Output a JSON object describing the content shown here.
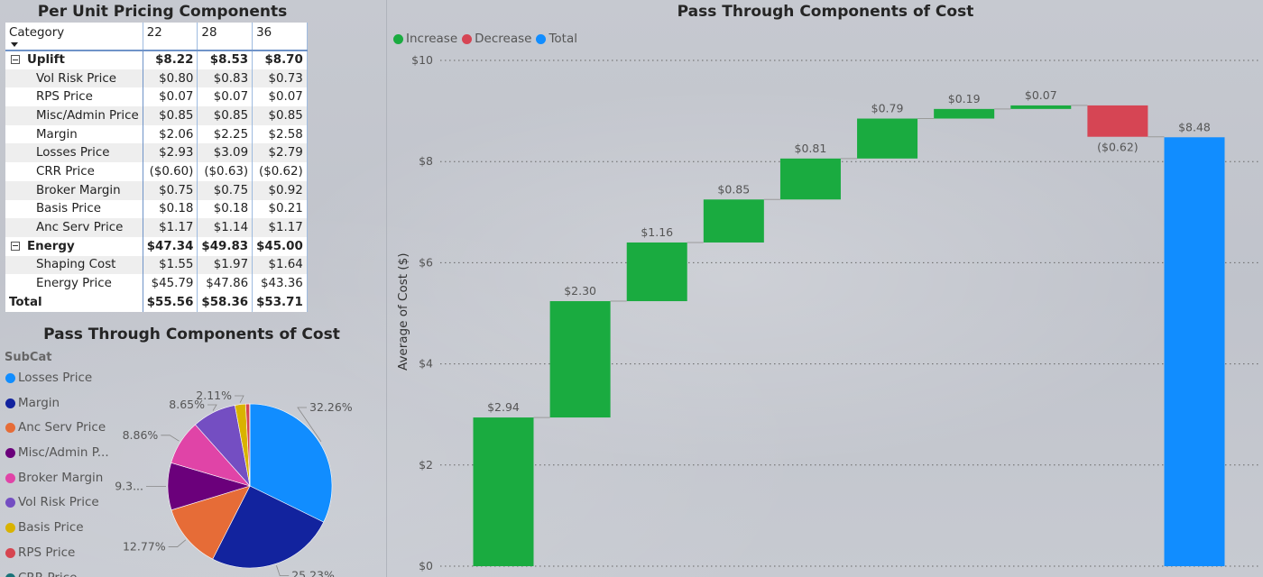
{
  "matrix": {
    "title": "Per Unit Pricing Components",
    "columns": [
      "Category",
      "22",
      "28",
      "36"
    ],
    "rows": [
      {
        "label": "Uplift",
        "type": "group",
        "values": [
          "$8.22",
          "$8.53",
          "$8.70"
        ]
      },
      {
        "label": "Vol Risk Price",
        "type": "child",
        "values": [
          "$0.80",
          "$0.83",
          "$0.73"
        ]
      },
      {
        "label": "RPS Price",
        "type": "child",
        "values": [
          "$0.07",
          "$0.07",
          "$0.07"
        ]
      },
      {
        "label": "Misc/Admin Price",
        "type": "child",
        "values": [
          "$0.85",
          "$0.85",
          "$0.85"
        ]
      },
      {
        "label": "Margin",
        "type": "child",
        "values": [
          "$2.06",
          "$2.25",
          "$2.58"
        ]
      },
      {
        "label": "Losses Price",
        "type": "child",
        "values": [
          "$2.93",
          "$3.09",
          "$2.79"
        ]
      },
      {
        "label": "CRR Price",
        "type": "child",
        "values": [
          "($0.60)",
          "($0.63)",
          "($0.62)"
        ]
      },
      {
        "label": "Broker Margin",
        "type": "child",
        "values": [
          "$0.75",
          "$0.75",
          "$0.92"
        ]
      },
      {
        "label": "Basis Price",
        "type": "child",
        "values": [
          "$0.18",
          "$0.18",
          "$0.21"
        ]
      },
      {
        "label": "Anc Serv Price",
        "type": "child",
        "values": [
          "$1.17",
          "$1.14",
          "$1.17"
        ]
      },
      {
        "label": "Energy",
        "type": "group",
        "values": [
          "$47.34",
          "$49.83",
          "$45.00"
        ]
      },
      {
        "label": "Shaping Cost",
        "type": "child",
        "values": [
          "$1.55",
          "$1.97",
          "$1.64"
        ]
      },
      {
        "label": "Energy Price",
        "type": "child",
        "values": [
          "$45.79",
          "$47.86",
          "$43.36"
        ]
      },
      {
        "label": "Total",
        "type": "total",
        "values": [
          "$55.56",
          "$58.36",
          "$53.71"
        ]
      }
    ]
  },
  "pie": {
    "title": "Pass Through Components of Cost",
    "legend_title": "SubCat",
    "legend": [
      {
        "name": "Losses Price",
        "color": "#118dff"
      },
      {
        "name": "Margin",
        "color": "#12239e"
      },
      {
        "name": "Anc Serv Price",
        "color": "#e66c37"
      },
      {
        "name": "Misc/Admin P...",
        "color": "#6b007b"
      },
      {
        "name": "Broker Margin",
        "color": "#e044a7"
      },
      {
        "name": "Vol Risk Price",
        "color": "#744ec2"
      },
      {
        "name": "Basis Price",
        "color": "#d9b300"
      },
      {
        "name": "RPS Price",
        "color": "#d64550"
      },
      {
        "name": "CRR Price",
        "color": "#197278"
      }
    ]
  },
  "waterfall": {
    "title": "Pass Through Components of Cost",
    "legend": [
      {
        "name": "Increase",
        "color": "#1aab40"
      },
      {
        "name": "Decrease",
        "color": "#d64554"
      },
      {
        "name": "Total",
        "color": "#118dff"
      }
    ]
  },
  "chart_data": [
    {
      "type": "pie",
      "title": "Pass Through Components of Cost",
      "legend_title": "SubCat",
      "slices": [
        {
          "name": "Losses Price",
          "value": 32.26,
          "label": "32.26%",
          "color": "#118dff"
        },
        {
          "name": "Margin",
          "value": 25.23,
          "label": "25.23%",
          "color": "#12239e"
        },
        {
          "name": "Anc Serv Price",
          "value": 12.77,
          "label": "12.77%",
          "color": "#e66c37"
        },
        {
          "name": "Misc/Admin P...",
          "value": 9.3,
          "label": "9.3...",
          "color": "#6b007b"
        },
        {
          "name": "Broker Margin",
          "value": 8.86,
          "label": "8.86%",
          "color": "#e044a7"
        },
        {
          "name": "Vol Risk Price",
          "value": 8.65,
          "label": "8.65%",
          "color": "#744ec2"
        },
        {
          "name": "Basis Price",
          "value": 2.11,
          "label": "2.11%",
          "color": "#d9b300"
        },
        {
          "name": "RPS Price",
          "value": 0.77,
          "label": "",
          "color": "#d64550"
        },
        {
          "name": "CRR Price",
          "value": 0.05,
          "label": "",
          "color": "#197278"
        }
      ]
    },
    {
      "type": "bar",
      "subtype": "waterfall",
      "title": "Pass Through Components of Cost",
      "ylabel": "Average of Cost ($)",
      "ylim": [
        0,
        10
      ],
      "yticks": [
        0,
        2,
        4,
        6,
        8,
        10
      ],
      "ytick_labels": [
        "$0",
        "$2",
        "$4",
        "$6",
        "$8",
        "$10"
      ],
      "grid": true,
      "steps": [
        {
          "value": 2.94,
          "label": "$2.94",
          "kind": "increase"
        },
        {
          "value": 2.3,
          "label": "$2.30",
          "kind": "increase"
        },
        {
          "value": 1.16,
          "label": "$1.16",
          "kind": "increase"
        },
        {
          "value": 0.85,
          "label": "$0.85",
          "kind": "increase"
        },
        {
          "value": 0.81,
          "label": "$0.81",
          "kind": "increase"
        },
        {
          "value": 0.79,
          "label": "$0.79",
          "kind": "increase"
        },
        {
          "value": 0.19,
          "label": "$0.19",
          "kind": "increase"
        },
        {
          "value": 0.07,
          "label": "$0.07",
          "kind": "increase"
        },
        {
          "value": -0.62,
          "label": "($0.62)",
          "kind": "decrease"
        },
        {
          "value": 8.48,
          "label": "$8.48",
          "kind": "total"
        }
      ]
    }
  ]
}
